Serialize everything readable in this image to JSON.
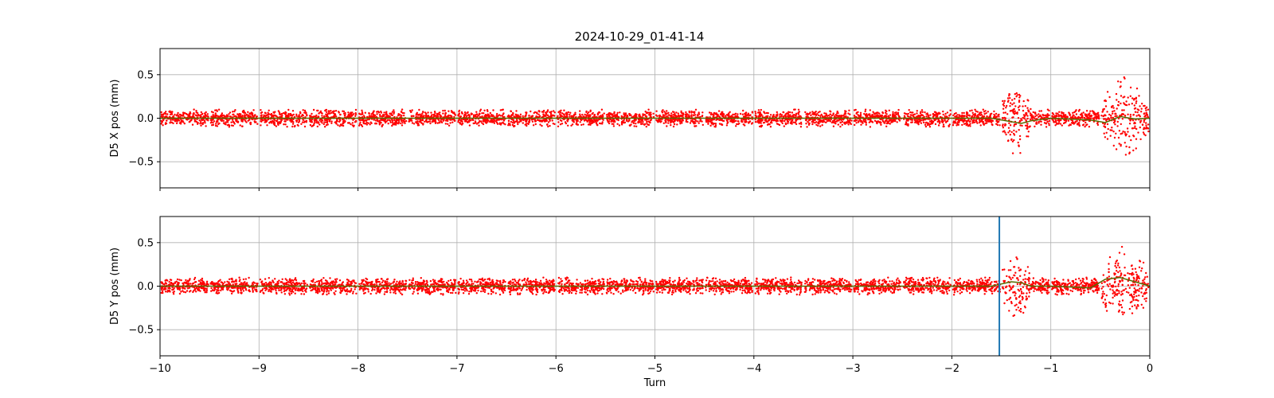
{
  "figure": {
    "title": "2024-10-29_01-41-14",
    "colors": {
      "points": "#ff0000",
      "smooth": "#556b00",
      "marker": "#1f77b4",
      "grid": "#b0b0b0"
    }
  },
  "chart_data": [
    {
      "type": "scatter",
      "title": "2024-10-29_01-41-14",
      "xlabel": "",
      "ylabel": "D5 X pos (mm)",
      "xlim": [
        -10,
        0
      ],
      "ylim": [
        -0.8,
        0.8
      ],
      "xticks": [
        -10,
        -9,
        -8,
        -7,
        -6,
        -5,
        -4,
        -3,
        -2,
        -1,
        0
      ],
      "xtick_labels_visible": false,
      "yticks": [
        0.5,
        0.0,
        -0.5
      ],
      "ytick_labels": [
        "0.5",
        "0.0",
        "−0.5"
      ],
      "grid": true,
      "segments": {
        "gap_every_turns": 0.5,
        "base_spread_mm": 0.1,
        "bursts": [
          {
            "x_from": -1.5,
            "x_to": -1.2,
            "spread_mm": 0.5
          },
          {
            "x_from": -0.5,
            "x_to": 0.0,
            "spread_mm": 0.5
          }
        ]
      },
      "smooth_series": {
        "x": [
          -10,
          -9,
          -8,
          -7,
          -6,
          -5,
          -4,
          -3,
          -2,
          -1.6,
          -1.4,
          -1.3,
          -1.2,
          -1,
          -0.6,
          -0.45,
          -0.3,
          -0.15,
          0
        ],
        "y": [
          0.0,
          0.0,
          0.0,
          0.0,
          0.0,
          0.0,
          0.0,
          0.0,
          0.0,
          0.0,
          -0.04,
          -0.06,
          -0.03,
          0.0,
          -0.02,
          -0.05,
          0.02,
          -0.01,
          0.0
        ]
      }
    },
    {
      "type": "scatter",
      "title": "",
      "xlabel": "Turn",
      "ylabel": "D5 Y pos (mm)",
      "xlim": [
        -10,
        0
      ],
      "ylim": [
        -0.8,
        0.8
      ],
      "xticks": [
        -10,
        -9,
        -8,
        -7,
        -6,
        -5,
        -4,
        -3,
        -2,
        -1,
        0
      ],
      "xtick_labels": [
        "−10",
        "−9",
        "−8",
        "−7",
        "−6",
        "−5",
        "−4",
        "−3",
        "−2",
        "−1",
        "0"
      ],
      "yticks": [
        0.5,
        0.0,
        -0.5
      ],
      "ytick_labels": [
        "0.5",
        "0.0",
        "−0.5"
      ],
      "grid": true,
      "vertical_marker_x": -1.52,
      "segments": {
        "gap_every_turns": 0.5,
        "base_spread_mm": 0.1,
        "bursts": [
          {
            "x_from": -1.5,
            "x_to": -1.2,
            "spread_mm": 0.45
          },
          {
            "x_from": -0.5,
            "x_to": 0.0,
            "spread_mm": 0.5
          }
        ]
      },
      "smooth_series": {
        "x": [
          -10,
          -9,
          -8,
          -7,
          -6,
          -5,
          -4,
          -3,
          -2,
          -1.6,
          -1.4,
          -1.3,
          -1.2,
          -1,
          -0.6,
          -0.45,
          -0.3,
          -0.15,
          0
        ],
        "y": [
          0.0,
          0.0,
          0.0,
          0.0,
          0.0,
          0.0,
          0.0,
          0.0,
          0.0,
          0.0,
          0.05,
          0.04,
          0.0,
          0.0,
          -0.02,
          0.08,
          0.1,
          0.05,
          0.0
        ]
      }
    }
  ]
}
